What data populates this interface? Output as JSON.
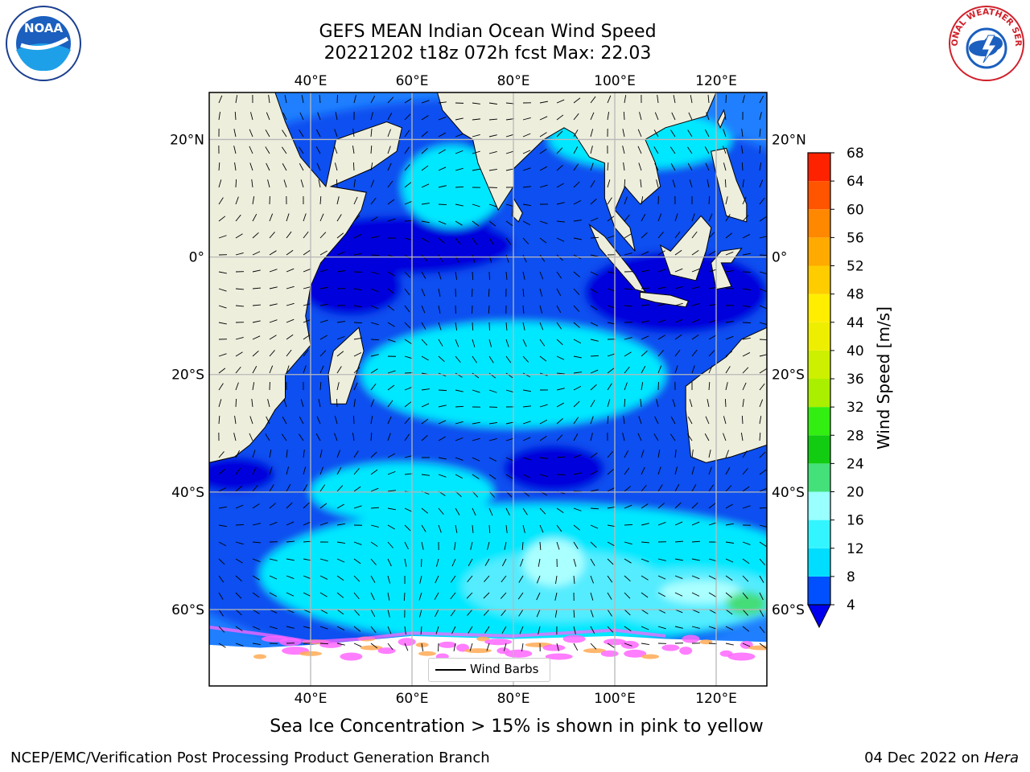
{
  "title": {
    "line1": "GEFS MEAN Indian Ocean Wind Speed",
    "line2": "20221202 t18z 072h fcst   Max: 22.03"
  },
  "map": {
    "projection": "lat-lon",
    "lon_range": [
      20,
      130
    ],
    "lat_range": [
      -73,
      28
    ],
    "grid": true,
    "lon_ticks": [
      {
        "value": 40,
        "label": "40°E"
      },
      {
        "value": 60,
        "label": "60°E"
      },
      {
        "value": 80,
        "label": "80°E"
      },
      {
        "value": 100,
        "label": "100°E"
      },
      {
        "value": 120,
        "label": "120°E"
      }
    ],
    "lat_ticks": [
      {
        "value": 20,
        "label": "20°N"
      },
      {
        "value": 0,
        "label": "0°"
      },
      {
        "value": -20,
        "label": "20°S"
      },
      {
        "value": -40,
        "label": "40°S"
      },
      {
        "value": -60,
        "label": "60°S"
      }
    ],
    "colors": {
      "land": "#eeeedd",
      "ice": "#ffffff",
      "ice_high": "#ff66ff",
      "ice_low": "#ffaa55"
    }
  },
  "colorbar": {
    "label": "Wind Speed [m/s]",
    "levels": [
      4,
      8,
      12,
      16,
      20,
      24,
      28,
      32,
      36,
      40,
      44,
      48,
      52,
      56,
      60,
      64,
      68
    ],
    "colors": [
      "#0050ff",
      "#00ddff",
      "#33f5ff",
      "#99ffff",
      "#44e07a",
      "#11cc11",
      "#33ee11",
      "#aaee00",
      "#ccf000",
      "#eeee00",
      "#ffee00",
      "#ffcc00",
      "#ffaa00",
      "#ff8800",
      "#ff5500",
      "#ff2200"
    ],
    "under_color": "#0000ee"
  },
  "wind_field": {
    "max_speed": 22.03,
    "zones": [
      {
        "speed": 6,
        "color": "#0a4ff0",
        "lon": 75,
        "lat": -5,
        "rx": 80,
        "ry": 32
      },
      {
        "speed": 6,
        "color": "#0a4ff0",
        "lon": 75,
        "lat": -45,
        "rx": 70,
        "ry": 25
      },
      {
        "speed": 2,
        "color": "#0000dd",
        "lon": 58,
        "lat": 2,
        "rx": 22,
        "ry": 5
      },
      {
        "speed": 2,
        "color": "#0000dd",
        "lon": 48,
        "lat": -5,
        "rx": 10,
        "ry": 5
      },
      {
        "speed": 2,
        "color": "#0000dd",
        "lon": 73,
        "lat": 12,
        "rx": 4,
        "ry": 8
      },
      {
        "speed": 2,
        "color": "#0000dd",
        "lon": 112,
        "lat": -6,
        "rx": 18,
        "ry": 7
      },
      {
        "speed": 2,
        "color": "#0000dd",
        "lon": 88,
        "lat": -36,
        "rx": 10,
        "ry": 4
      },
      {
        "speed": 2,
        "color": "#0000dd",
        "lon": 25,
        "lat": -37,
        "rx": 8,
        "ry": 3
      },
      {
        "speed": 2,
        "color": "#0000dd",
        "lon": 52,
        "lat": -42,
        "rx": 5,
        "ry": 2
      },
      {
        "speed": 10,
        "color": "#00e8ff",
        "lon": 80,
        "lat": -20,
        "rx": 30,
        "ry": 9
      },
      {
        "speed": 10,
        "color": "#00e8ff",
        "lon": 68,
        "lat": 12,
        "rx": 10,
        "ry": 7
      },
      {
        "speed": 10,
        "color": "#00e8ff",
        "lon": 105,
        "lat": 20,
        "rx": 18,
        "ry": 5
      },
      {
        "speed": 10,
        "color": "#00e8ff",
        "lon": 85,
        "lat": -54,
        "rx": 55,
        "ry": 12
      },
      {
        "speed": 10,
        "color": "#00e8ff",
        "lon": 58,
        "lat": -40,
        "rx": 18,
        "ry": 5
      },
      {
        "speed": 14,
        "color": "#55ecff",
        "lon": 90,
        "lat": -56,
        "rx": 20,
        "ry": 6
      },
      {
        "speed": 14,
        "color": "#55ecff",
        "lon": 115,
        "lat": -58,
        "rx": 18,
        "ry": 5
      },
      {
        "speed": 18,
        "color": "#aaffff",
        "lon": 88,
        "lat": -52,
        "rx": 6,
        "ry": 4
      },
      {
        "speed": 18,
        "color": "#aaffff",
        "lon": 117,
        "lat": -57,
        "rx": 8,
        "ry": 2
      },
      {
        "speed": 21,
        "color": "#44dd77",
        "lon": 126,
        "lat": -59,
        "rx": 4,
        "ry": 2
      }
    ]
  },
  "legend": {
    "label": "Wind Barbs"
  },
  "caption": "Sea Ice Concentration > 15% is shown in pink to yellow",
  "footer": {
    "left": "NCEP/EMC/Verification Post Processing Product Generation Branch",
    "date": "04 Dec 2022 on",
    "host": "Hera"
  },
  "logos": {
    "left": {
      "name": "noaa",
      "text": "NOAA"
    },
    "right": {
      "name": "nws",
      "text": "NATIONAL WEATHER SERVICE"
    }
  }
}
